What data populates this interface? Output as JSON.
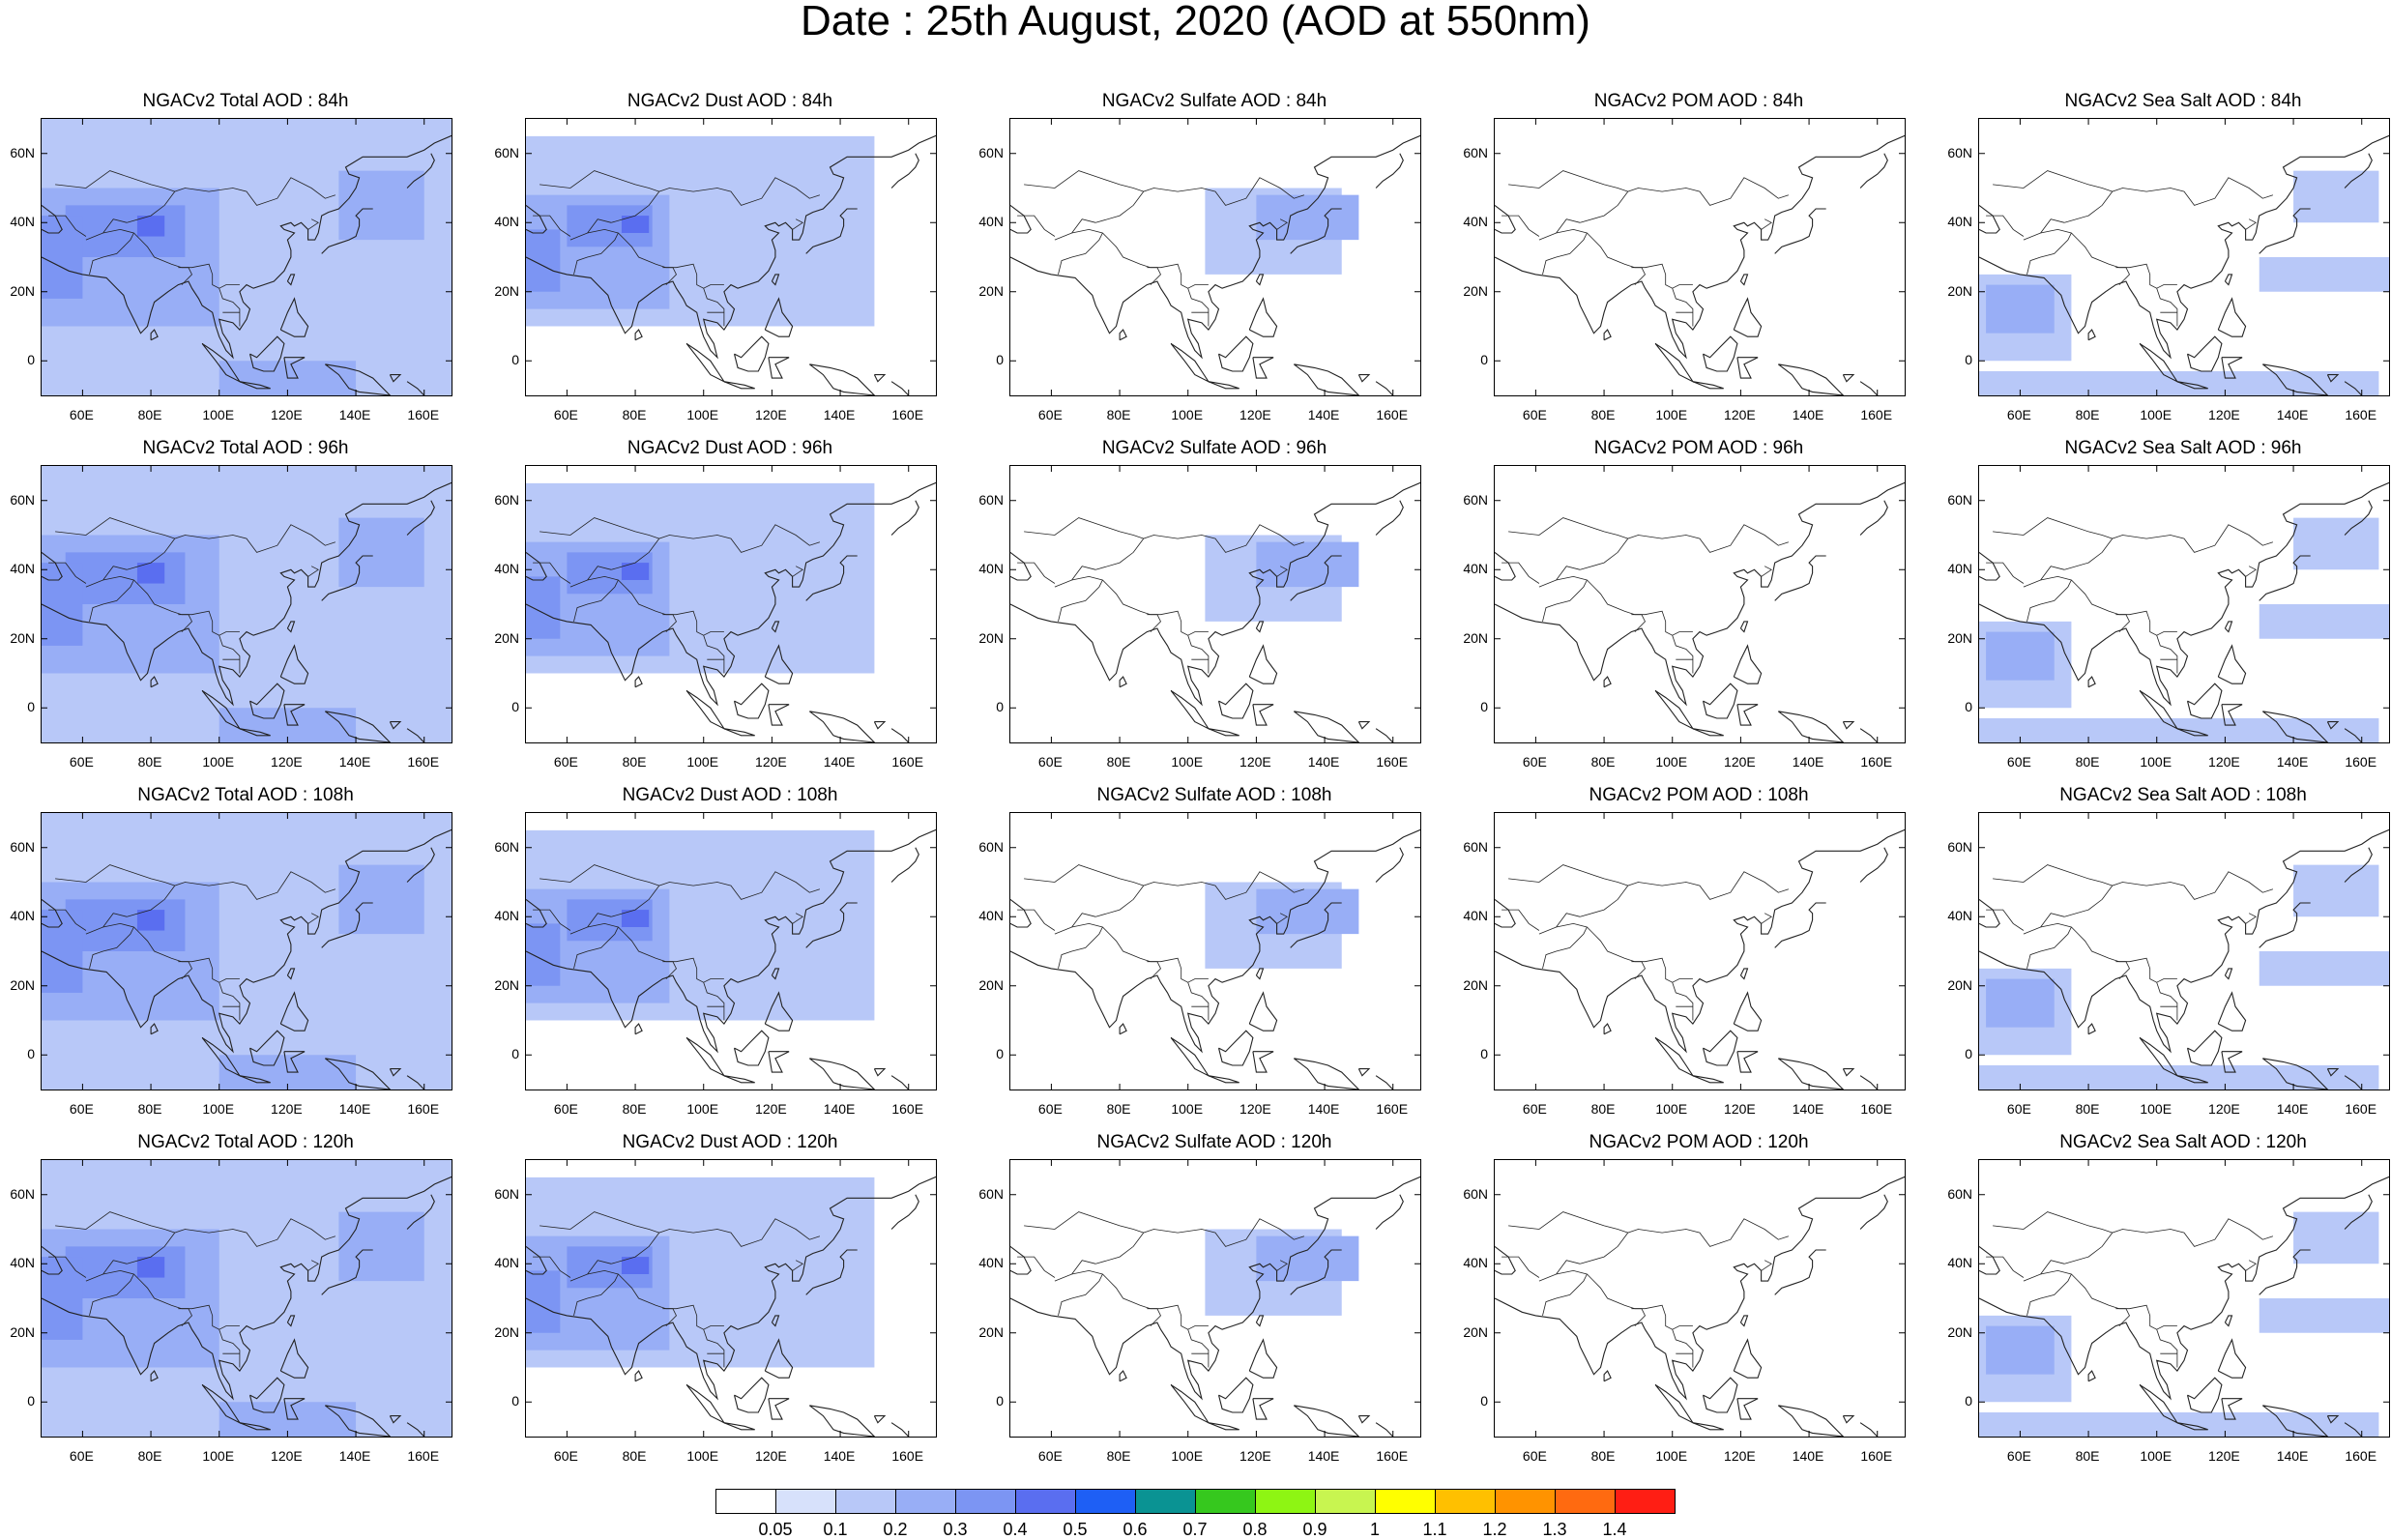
{
  "title": "Date : 25th August, 2020 (AOD at 550nm)",
  "lat_ticks": [
    "60N",
    "40N",
    "20N",
    "0"
  ],
  "lon_ticks": [
    "60E",
    "80E",
    "100E",
    "120E",
    "140E",
    "160E"
  ],
  "chart_data": {
    "type": "heatmap",
    "region": {
      "lon_range": [
        48,
        168
      ],
      "lat_range": [
        -10,
        70
      ]
    },
    "colorbar": {
      "levels": [
        "0.05",
        "0.1",
        "0.2",
        "0.3",
        "0.4",
        "0.5",
        "0.6",
        "0.7",
        "0.8",
        "0.9",
        "1",
        "1.1",
        "1.2",
        "1.3",
        "1.4"
      ],
      "colors": [
        "#ffffff",
        "#d7e1fb",
        "#b8c8f8",
        "#98aef6",
        "#7c95f3",
        "#5a6ef0",
        "#1e5ff5",
        "#0a9393",
        "#36c81e",
        "#8ef513",
        "#c8f550",
        "#ffff00",
        "#ffc000",
        "#ff9300",
        "#ff6a10",
        "#ff1e14"
      ]
    },
    "rows": [
      {
        "hour": "84h",
        "titles": [
          "NGACv2 Total AOD : 84h",
          "NGACv2 Dust AOD : 84h",
          "NGACv2 Sulfate AOD : 84h",
          "NGACv2 POM AOD : 84h",
          "NGACv2 Sea Salt AOD : 84h"
        ]
      },
      {
        "hour": "96h",
        "titles": [
          "NGACv2 Total AOD : 96h",
          "NGACv2 Dust AOD : 96h",
          "NGACv2 Sulfate AOD : 96h",
          "NGACv2 POM AOD : 96h",
          "NGACv2 Sea Salt AOD : 96h"
        ]
      },
      {
        "hour": "108h",
        "titles": [
          "NGACv2 Total AOD : 108h",
          "NGACv2 Dust AOD : 108h",
          "NGACv2 Sulfate AOD : 108h",
          "NGACv2 POM AOD : 108h",
          "NGACv2 Sea Salt AOD : 108h"
        ]
      },
      {
        "hour": "120h",
        "titles": [
          "NGACv2 Total AOD : 120h",
          "NGACv2 Dust AOD : 120h",
          "NGACv2 Sulfate AOD : 120h",
          "NGACv2 POM AOD : 120h",
          "NGACv2 Sea Salt  AOD : 120h"
        ]
      }
    ],
    "columns": [
      {
        "species": "Total",
        "features": [
          {
            "lon": [
              48,
              168
            ],
            "lat": [
              -10,
              70
            ],
            "value": 0.1
          },
          {
            "lon": [
              48,
              100
            ],
            "lat": [
              10,
              50
            ],
            "value": 0.2
          },
          {
            "lon": [
              55,
              90
            ],
            "lat": [
              30,
              45
            ],
            "value": 0.3
          },
          {
            "lon": [
              76,
              84
            ],
            "lat": [
              36,
              42
            ],
            "value": 0.4
          },
          {
            "lon": [
              48,
              60
            ],
            "lat": [
              18,
              42
            ],
            "value": 0.3
          },
          {
            "lon": [
              135,
              160
            ],
            "lat": [
              35,
              55
            ],
            "value": 0.2
          },
          {
            "lon": [
              100,
              140
            ],
            "lat": [
              -10,
              0
            ],
            "value": 0.2
          }
        ]
      },
      {
        "species": "Dust",
        "features": [
          {
            "lon": [
              48,
              150
            ],
            "lat": [
              10,
              65
            ],
            "value": 0.1
          },
          {
            "lon": [
              48,
              90
            ],
            "lat": [
              15,
              48
            ],
            "value": 0.2
          },
          {
            "lon": [
              60,
              85
            ],
            "lat": [
              33,
              45
            ],
            "value": 0.3
          },
          {
            "lon": [
              76,
              84
            ],
            "lat": [
              37,
              42
            ],
            "value": 0.4
          },
          {
            "lon": [
              48,
              58
            ],
            "lat": [
              20,
              38
            ],
            "value": 0.3
          }
        ]
      },
      {
        "species": "Sulfate",
        "features": [
          {
            "lon": [
              105,
              145
            ],
            "lat": [
              25,
              50
            ],
            "value": 0.1
          },
          {
            "lon": [
              120,
              150
            ],
            "lat": [
              35,
              48
            ],
            "value": 0.2
          }
        ]
      },
      {
        "species": "POM",
        "features": []
      },
      {
        "species": "Sea Salt",
        "features": [
          {
            "lon": [
              48,
              75
            ],
            "lat": [
              0,
              25
            ],
            "value": 0.1
          },
          {
            "lon": [
              50,
              70
            ],
            "lat": [
              8,
              22
            ],
            "value": 0.2
          },
          {
            "lon": [
              130,
              168
            ],
            "lat": [
              20,
              30
            ],
            "value": 0.1
          },
          {
            "lon": [
              140,
              165
            ],
            "lat": [
              40,
              55
            ],
            "value": 0.1
          },
          {
            "lon": [
              48,
              165
            ],
            "lat": [
              -10,
              -3
            ],
            "value": 0.1
          }
        ]
      }
    ]
  }
}
